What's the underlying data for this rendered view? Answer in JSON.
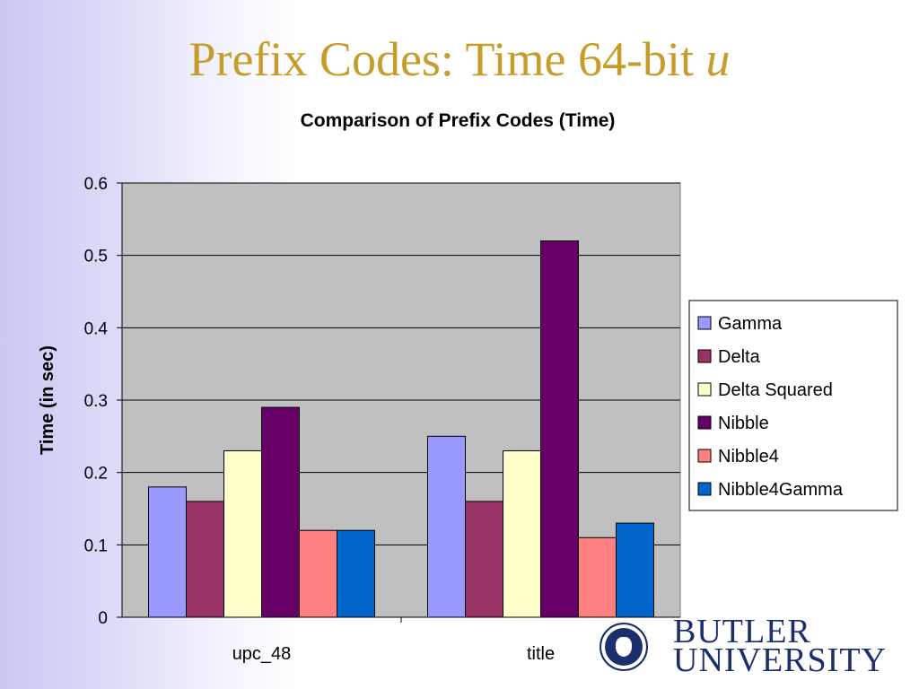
{
  "slide": {
    "title": "Prefix Codes: Time 64-bit",
    "title_var": "u"
  },
  "chart_data": {
    "type": "bar",
    "title": "Comparison of Prefix Codes (Time)",
    "xlabel": "",
    "ylabel": "Time (in sec)",
    "ylim": [
      0,
      0.6
    ],
    "yticks": [
      "0",
      "0.1",
      "0.2",
      "0.3",
      "0.4",
      "0.5",
      "0.6"
    ],
    "grid": true,
    "legend_position": "right",
    "categories": [
      "upc_48",
      "title"
    ],
    "series": [
      {
        "name": "Gamma",
        "values": [
          0.18,
          0.25
        ],
        "color": "#9999ff"
      },
      {
        "name": "Delta",
        "values": [
          0.16,
          0.16
        ],
        "color": "#993366"
      },
      {
        "name": "Delta Squared",
        "values": [
          0.23,
          0.23
        ],
        "color": "#ffffcc"
      },
      {
        "name": "Nibble",
        "values": [
          0.29,
          0.52
        ],
        "color": "#660066"
      },
      {
        "name": "Nibble4",
        "values": [
          0.12,
          0.11
        ],
        "color": "#ff8080"
      },
      {
        "name": "Nibble4Gamma",
        "values": [
          0.12,
          0.13
        ],
        "color": "#0066cc"
      }
    ],
    "plot_background": "#c0c0c0"
  },
  "logo": {
    "line1": "BUTLER",
    "line2": "UNIVERSITY",
    "color": "#1b2f6e",
    "seal_icon": "university-seal-icon"
  }
}
